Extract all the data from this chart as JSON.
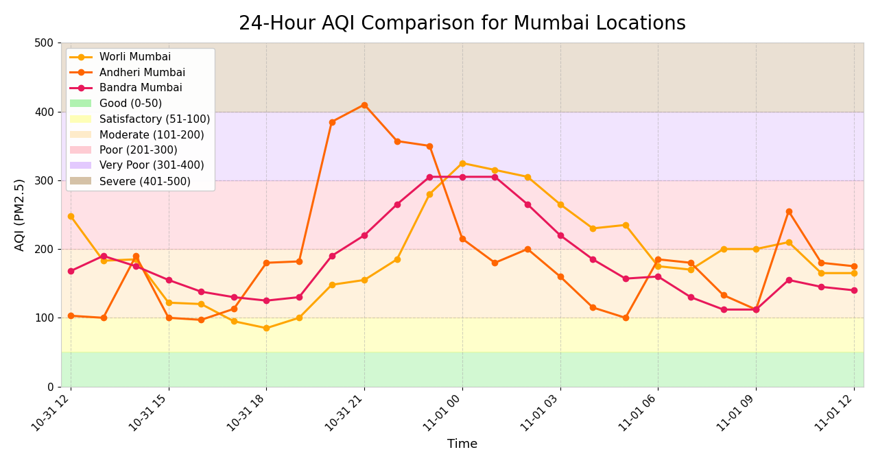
{
  "title": "24-Hour AQI Comparison for Mumbai Locations",
  "xlabel": "Time",
  "ylabel": "AQI (PM2.5)",
  "xtick_labels": [
    "10-31 12",
    "10-31 15",
    "10-31 18",
    "10-31 21",
    "11-01 00",
    "11-01 03",
    "11-01 06",
    "11-01 09",
    "11-01 12"
  ],
  "worli": [
    248,
    183,
    185,
    122,
    120,
    95,
    85,
    100,
    148,
    155,
    185,
    280,
    325,
    315,
    305,
    265,
    230,
    235,
    175,
    170,
    200,
    200,
    210,
    165,
    165
  ],
  "andheri": [
    103,
    100,
    190,
    100,
    97,
    113,
    180,
    182,
    385,
    410,
    357,
    350,
    215,
    180,
    200,
    160,
    115,
    100,
    185,
    180,
    133,
    112,
    255,
    180,
    175
  ],
  "bandra": [
    168,
    190,
    175,
    155,
    138,
    130,
    125,
    130,
    190,
    220,
    265,
    305,
    305,
    305,
    265,
    220,
    185,
    157,
    160,
    130,
    112,
    112,
    155,
    145,
    140
  ],
  "worli_color": "#FFA500",
  "andheri_color": "#FF6600",
  "bandra_color": "#E8185A",
  "bg_color": "#ffffff",
  "band_good_color": "#90EE90",
  "band_satisfactory_color": "#FFFF99",
  "band_moderate_color": "#FFE4B5",
  "band_poor_color": "#FFB6C1",
  "band_verypoor_color": "#D8B4FE",
  "band_severe_color": "#C4A882",
  "band_good_alpha": 0.4,
  "band_satisfactory_alpha": 0.5,
  "band_moderate_alpha": 0.45,
  "band_poor_alpha": 0.4,
  "band_verypoor_alpha": 0.35,
  "band_severe_alpha": 0.35,
  "ylim": [
    0,
    500
  ],
  "title_fontsize": 20,
  "axis_fontsize": 13,
  "tick_fontsize": 11,
  "legend_fontsize": 11,
  "linewidth": 2.2,
  "markersize": 6
}
